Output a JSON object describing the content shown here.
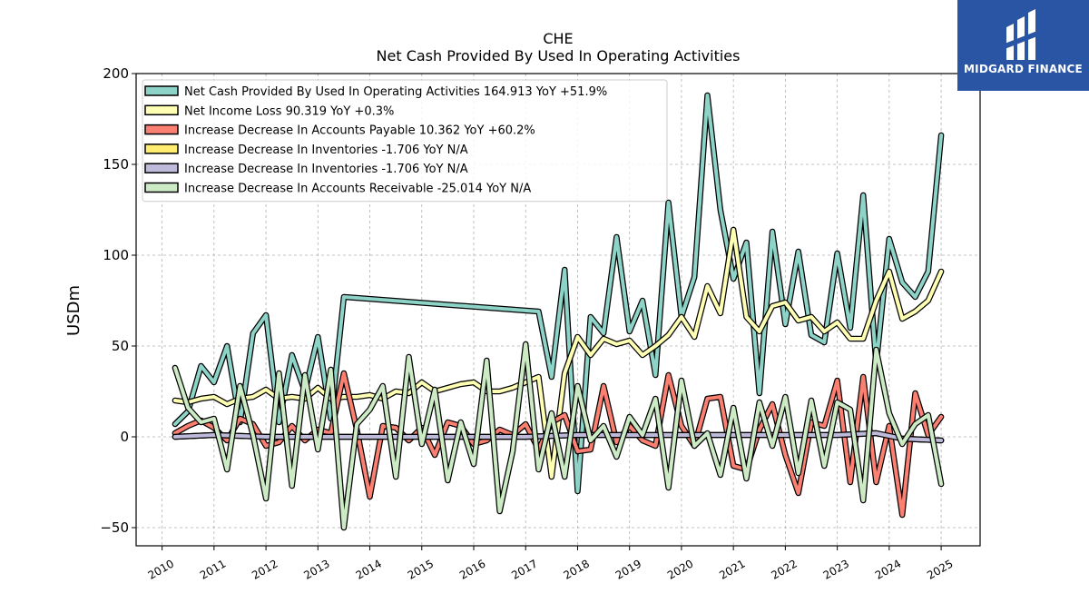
{
  "header": {
    "ticker": "CHE",
    "subtitle": "Net Cash Provided By Used In Operating Activities"
  },
  "brand": {
    "name": "MIDGARD FINANCE",
    "color": "#2a55a5"
  },
  "chart_data": {
    "type": "line",
    "title": "CHE",
    "subtitle": "Net Cash Provided By Used In Operating Activities",
    "ylabel": "USDm",
    "xlabel": "",
    "xlim": [
      2009.5,
      2025.75
    ],
    "ylim": [
      -60,
      200
    ],
    "yticks": [
      -50,
      0,
      50,
      100,
      150,
      200
    ],
    "ytick_labels": [
      "−50",
      "0",
      "50",
      "100",
      "150",
      "200"
    ],
    "xticks": [
      2010,
      2011,
      2012,
      2013,
      2014,
      2015,
      2016,
      2017,
      2018,
      2019,
      2020,
      2021,
      2022,
      2023,
      2024,
      2025
    ],
    "xtick_labels": [
      "2010",
      "2011",
      "2012",
      "2013",
      "2014",
      "2015",
      "2016",
      "2017",
      "2018",
      "2019",
      "2020",
      "2021",
      "2022",
      "2023",
      "2024",
      "2025"
    ],
    "grid": true,
    "legend_position": "top-left",
    "series": [
      {
        "name": "Net Cash Provided By Used In Operating Activities",
        "legend": "Net Cash Provided By Used In Operating Activities  164.913 YoY +51.9%",
        "color": "#8dd3c7",
        "x": [
          2010.25,
          2010.5,
          2010.75,
          2011.0,
          2011.25,
          2011.5,
          2011.75,
          2012.0,
          2012.25,
          2012.5,
          2012.75,
          2013.0,
          2013.25,
          2013.5,
          2017.25,
          2017.5,
          2017.75,
          2018.0,
          2018.25,
          2018.5,
          2018.75,
          2019.0,
          2019.25,
          2019.5,
          2019.75,
          2020.0,
          2020.25,
          2020.5,
          2020.75,
          2021.0,
          2021.25,
          2021.5,
          2021.75,
          2022.0,
          2022.25,
          2022.5,
          2022.75,
          2023.0,
          2023.25,
          2023.5,
          2023.75,
          2024.0,
          2024.25,
          2024.5,
          2024.75,
          2025.0
        ],
        "y": [
          7,
          14,
          39,
          30,
          50,
          8,
          57,
          67,
          8,
          45,
          25,
          55,
          10,
          77,
          69,
          33,
          92,
          -30,
          66,
          57,
          110,
          58,
          75,
          34,
          129,
          66,
          88,
          188,
          125,
          87,
          107,
          24,
          113,
          62,
          102,
          56,
          52,
          101,
          60,
          133,
          40,
          109,
          85,
          77,
          91,
          166
        ]
      },
      {
        "name": "Net Income Loss",
        "legend": "Net Income Loss  90.319 YoY +0.3%",
        "color": "#ffffb3",
        "x": [
          2010.25,
          2010.5,
          2010.75,
          2011.0,
          2011.25,
          2011.5,
          2011.75,
          2012.0,
          2012.25,
          2012.5,
          2012.75,
          2013.0,
          2013.25,
          2013.5,
          2013.75,
          2014.0,
          2014.25,
          2014.5,
          2014.75,
          2015.0,
          2015.25,
          2015.5,
          2015.75,
          2016.0,
          2016.25,
          2016.5,
          2016.75,
          2017.0,
          2017.25,
          2017.5,
          2017.75,
          2018.0,
          2018.25,
          2018.5,
          2018.75,
          2019.0,
          2019.25,
          2019.5,
          2019.75,
          2020.0,
          2020.25,
          2020.5,
          2020.75,
          2021.0,
          2021.25,
          2021.5,
          2021.75,
          2022.0,
          2022.25,
          2022.5,
          2022.75,
          2023.0,
          2023.25,
          2023.5,
          2023.75,
          2024.0,
          2024.25,
          2024.5,
          2024.75,
          2025.0
        ],
        "y": [
          20,
          19,
          21,
          22,
          18,
          21,
          22,
          26,
          21,
          22,
          21,
          27,
          21,
          22,
          22,
          23,
          21,
          25,
          24,
          30,
          25,
          27,
          29,
          30,
          25,
          25,
          27,
          30,
          33,
          -22,
          35,
          55,
          45,
          54,
          51,
          53,
          45,
          50,
          56,
          66,
          55,
          83,
          68,
          114,
          66,
          58,
          72,
          74,
          64,
          66,
          58,
          63,
          54,
          54,
          75,
          91,
          65,
          69,
          75,
          91
        ]
      },
      {
        "name": "Increase Decrease In Accounts Payable",
        "legend": "Increase Decrease In Accounts Payable  10.362 YoY +60.2%",
        "color": "#fb8072",
        "x": [
          2010.25,
          2010.5,
          2010.75,
          2011.0,
          2011.25,
          2011.5,
          2011.75,
          2012.0,
          2012.25,
          2012.5,
          2012.75,
          2013.0,
          2013.25,
          2013.5,
          2013.75,
          2014.0,
          2014.25,
          2014.5,
          2014.75,
          2015.0,
          2015.25,
          2015.5,
          2015.75,
          2016.0,
          2016.25,
          2016.5,
          2016.75,
          2017.0,
          2017.25,
          2017.5,
          2017.75,
          2018.0,
          2018.25,
          2018.5,
          2018.75,
          2019.0,
          2019.25,
          2019.5,
          2019.75,
          2020.0,
          2020.25,
          2020.5,
          2020.75,
          2021.0,
          2021.25,
          2021.5,
          2021.75,
          2022.0,
          2022.25,
          2022.5,
          2022.75,
          2023.0,
          2023.25,
          2023.5,
          2023.75,
          2024.0,
          2024.25,
          2024.5,
          2024.75,
          2025.0
        ],
        "y": [
          2,
          6,
          9,
          5,
          -2,
          10,
          7,
          -5,
          -3,
          6,
          -2,
          4,
          2,
          35,
          4,
          -33,
          6,
          5,
          -2,
          5,
          -10,
          8,
          6,
          -4,
          -2,
          4,
          1,
          7,
          -7,
          8,
          12,
          -8,
          -7,
          28,
          -3,
          6,
          -2,
          -5,
          34,
          6,
          -5,
          21,
          22,
          -16,
          -18,
          4,
          18,
          -10,
          -31,
          8,
          6,
          31,
          -25,
          33,
          -25,
          6,
          -43,
          24,
          1,
          11
        ]
      },
      {
        "name": "Increase Decrease In Inventories",
        "legend": "Increase Decrease In Inventories  -1.706 YoY N/A",
        "color": "#ffed6f",
        "x": [
          2010.25,
          2011.0,
          2012.0,
          2013.0,
          2014.0,
          2015.0,
          2016.0,
          2017.0,
          2018.0,
          2019.0,
          2020.0,
          2021.0,
          2022.0,
          2023.0,
          2023.75,
          2024.25,
          2025.0
        ],
        "y": [
          0,
          1,
          0,
          0,
          0,
          0,
          0,
          0,
          1,
          1,
          1,
          1,
          1,
          1,
          2,
          -1,
          -2
        ]
      },
      {
        "name": "Increase Decrease In Inventories",
        "legend": "Increase Decrease In Inventories  -1.706 YoY N/A",
        "color": "#bebada",
        "x": [
          2010.25,
          2011.0,
          2012.0,
          2013.0,
          2014.0,
          2015.0,
          2016.0,
          2017.0,
          2018.0,
          2019.0,
          2020.0,
          2021.0,
          2022.0,
          2023.0,
          2023.75,
          2024.25,
          2025.0
        ],
        "y": [
          0,
          1,
          0,
          0,
          0,
          0,
          0,
          0,
          1,
          1,
          1,
          1,
          1,
          1,
          2,
          -1,
          -2
        ]
      },
      {
        "name": "Increase Decrease In Accounts Receivable",
        "legend": "Increase Decrease In Accounts Receivable  -25.014 YoY N/A",
        "color": "#ccebc5",
        "x": [
          2010.25,
          2010.5,
          2010.75,
          2011.0,
          2011.25,
          2011.5,
          2011.75,
          2012.0,
          2012.25,
          2012.5,
          2012.75,
          2013.0,
          2013.25,
          2013.5,
          2013.75,
          2014.0,
          2014.25,
          2014.5,
          2014.75,
          2015.0,
          2015.25,
          2015.5,
          2015.75,
          2016.0,
          2016.25,
          2016.5,
          2016.75,
          2017.0,
          2017.25,
          2017.5,
          2017.75,
          2018.0,
          2018.25,
          2018.5,
          2018.75,
          2019.0,
          2019.25,
          2019.5,
          2019.75,
          2020.0,
          2020.25,
          2020.5,
          2020.75,
          2021.0,
          2021.25,
          2021.5,
          2021.75,
          2022.0,
          2022.25,
          2022.5,
          2022.75,
          2023.0,
          2023.25,
          2023.5,
          2023.75,
          2024.0,
          2024.25,
          2024.5,
          2024.75,
          2025.0
        ],
        "y": [
          38,
          16,
          8,
          10,
          -18,
          28,
          1,
          -34,
          35,
          -27,
          34,
          -7,
          37,
          -50,
          7,
          15,
          28,
          -22,
          44,
          -4,
          26,
          -24,
          8,
          -15,
          42,
          -41,
          -8,
          51,
          -18,
          13,
          -22,
          28,
          -2,
          6,
          -11,
          11,
          1,
          21,
          -28,
          31,
          -5,
          2,
          -21,
          16,
          -23,
          19,
          -5,
          22,
          -20,
          20,
          -16,
          19,
          15,
          -35,
          48,
          13,
          -4,
          7,
          12,
          -26
        ]
      }
    ]
  }
}
